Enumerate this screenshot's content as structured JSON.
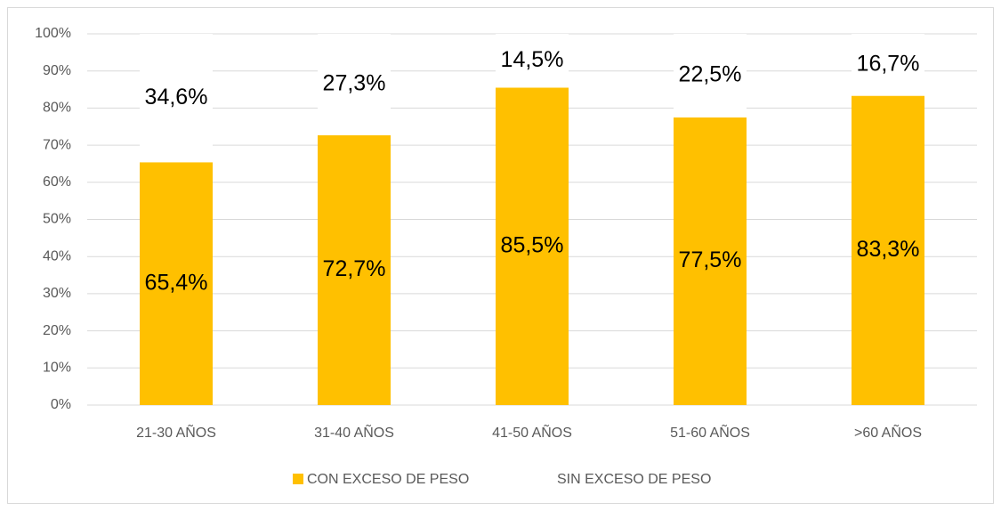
{
  "chart_data": {
    "type": "stacked_bar",
    "categories": [
      "21-30 AÑOS",
      "31-40 AÑOS",
      "41-50 AÑOS",
      "51-60 AÑOS",
      ">60 AÑOS"
    ],
    "series": [
      {
        "name": "CON EXCESO DE PESO",
        "color": "#ffc000",
        "values": [
          65.4,
          72.7,
          85.5,
          77.5,
          83.3
        ],
        "value_labels": [
          "65,4%",
          "72,7%",
          "85,5%",
          "77,5%",
          "83,3%"
        ]
      },
      {
        "name": "SIN EXCESO DE PESO",
        "color": "#ffffff",
        "values": [
          34.6,
          27.3,
          14.5,
          22.5,
          16.7
        ],
        "value_labels": [
          "34,6%",
          "27,3%",
          "14,5%",
          "22,5%",
          "16,7%"
        ]
      }
    ],
    "ylim": [
      0,
      100
    ],
    "yticks": [
      {
        "value": 0,
        "label": "0%"
      },
      {
        "value": 10,
        "label": "10%"
      },
      {
        "value": 20,
        "label": "20%"
      },
      {
        "value": 30,
        "label": "30%"
      },
      {
        "value": 40,
        "label": "40%"
      },
      {
        "value": 50,
        "label": "50%"
      },
      {
        "value": 60,
        "label": "60%"
      },
      {
        "value": 70,
        "label": "70%"
      },
      {
        "value": 80,
        "label": "80%"
      },
      {
        "value": 90,
        "label": "90%"
      },
      {
        "value": 100,
        "label": "100%"
      }
    ],
    "grid": true
  }
}
